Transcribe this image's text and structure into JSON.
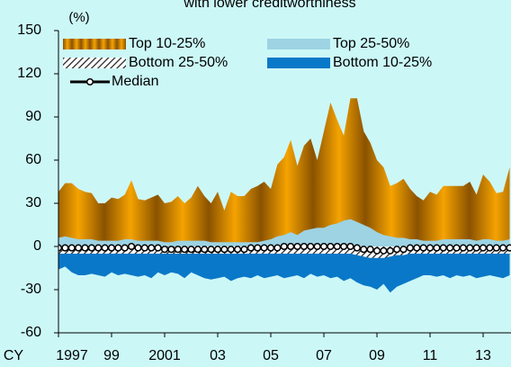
{
  "chart_data": {
    "type": "area",
    "title": "with lower creditworthiness",
    "y_label": "(%)",
    "x_prefix": "CY",
    "x": [
      1997,
      1997.25,
      1997.5,
      1997.75,
      1998,
      1998.25,
      1998.5,
      1998.75,
      1999,
      1999.25,
      1999.5,
      1999.75,
      2000,
      2000.25,
      2000.5,
      2000.75,
      2001,
      2001.25,
      2001.5,
      2001.75,
      2002,
      2002.25,
      2002.5,
      2002.75,
      2003,
      2003.25,
      2003.5,
      2003.75,
      2004,
      2004.25,
      2004.5,
      2004.75,
      2005,
      2005.25,
      2005.5,
      2005.75,
      2006,
      2006.25,
      2006.5,
      2006.75,
      2007,
      2007.25,
      2007.5,
      2007.75,
      2008,
      2008.25,
      2008.5,
      2008.75,
      2009,
      2009.25,
      2009.5,
      2009.75,
      2010,
      2010.25,
      2010.5,
      2010.75,
      2011,
      2011.25,
      2011.5,
      2011.75,
      2012,
      2012.25,
      2012.5,
      2012.75,
      2013,
      2013.25,
      2013.5,
      2013.75,
      2014
    ],
    "series": [
      {
        "name": "Top 10-25%",
        "color": "#f5a300",
        "values": [
          38,
          44,
          44,
          40,
          38,
          37,
          30,
          30,
          34,
          33,
          36,
          46,
          33,
          32,
          34,
          36,
          30,
          31,
          35,
          30,
          34,
          42,
          35,
          30,
          38,
          25,
          38,
          35,
          35,
          40,
          42,
          45,
          40,
          57,
          62,
          74,
          56,
          70,
          75,
          60,
          80,
          100,
          88,
          77,
          103,
          103,
          80,
          72,
          60,
          55,
          42,
          44,
          47,
          40,
          35,
          32,
          38,
          36,
          42,
          42,
          42,
          42,
          45,
          36,
          50,
          45,
          37,
          38,
          55
        ]
      },
      {
        "name": "Top 25-50%",
        "color": "#9dd3e3",
        "values": [
          6,
          7,
          6,
          5,
          5,
          5,
          4,
          4,
          4,
          4,
          5,
          5,
          4,
          4,
          4,
          4,
          3,
          3,
          4,
          4,
          4,
          4,
          4,
          3,
          3,
          3,
          3,
          3,
          3,
          3,
          3,
          4,
          5,
          7,
          8,
          10,
          8,
          11,
          12,
          13,
          13,
          15,
          16,
          18,
          19,
          17,
          15,
          13,
          10,
          8,
          7,
          6,
          6,
          5,
          5,
          4,
          4,
          4,
          5,
          5,
          5,
          5,
          5,
          4,
          5,
          5,
          4,
          4,
          5
        ]
      },
      {
        "name": "Bottom 25-50%",
        "color": "#222222",
        "pattern": "hatch",
        "values": [
          -5,
          -5,
          -5,
          -5,
          -5,
          -5,
          -5,
          -5,
          -5,
          -5,
          -5,
          -5,
          -5,
          -5,
          -5,
          -5,
          -5,
          -5,
          -5,
          -5,
          -5,
          -5,
          -5,
          -5,
          -5,
          -5,
          -5,
          -5,
          -5,
          -5,
          -5,
          -5,
          -5,
          -5,
          -5,
          -5,
          -5,
          -5,
          -5,
          -5,
          -5,
          -5,
          -5,
          -5,
          -5,
          -6,
          -7,
          -8,
          -8,
          -8,
          -7,
          -6,
          -6,
          -5,
          -5,
          -5,
          -5,
          -5,
          -5,
          -5,
          -5,
          -5,
          -5,
          -5,
          -5,
          -5,
          -5,
          -5,
          -5
        ]
      },
      {
        "name": "Bottom 10-25%",
        "color": "#0a78c8",
        "values": [
          -16,
          -14,
          -18,
          -20,
          -20,
          -19,
          -20,
          -21,
          -18,
          -20,
          -19,
          -20,
          -21,
          -20,
          -22,
          -18,
          -20,
          -18,
          -19,
          -22,
          -18,
          -20,
          -22,
          -23,
          -22,
          -21,
          -24,
          -22,
          -21,
          -22,
          -20,
          -22,
          -21,
          -20,
          -22,
          -21,
          -20,
          -22,
          -19,
          -21,
          -20,
          -22,
          -21,
          -24,
          -22,
          -25,
          -27,
          -28,
          -30,
          -26,
          -32,
          -28,
          -26,
          -24,
          -22,
          -20,
          -20,
          -21,
          -20,
          -22,
          -20,
          -21,
          -20,
          -22,
          -21,
          -20,
          -21,
          -22,
          -20
        ]
      },
      {
        "name": "Median",
        "color": "#000000",
        "line": true,
        "values": [
          -1,
          -1,
          -1,
          -1,
          -1,
          -1,
          -1,
          -1,
          -1,
          -1,
          -1,
          0,
          -1,
          -1,
          -1,
          -1,
          -2,
          -2,
          -2,
          -2,
          -2,
          -2,
          -2,
          -2,
          -2,
          -2,
          -2,
          -2,
          -2,
          -1,
          -1,
          -1,
          -1,
          -1,
          0,
          0,
          0,
          0,
          0,
          0,
          0,
          0,
          0,
          0,
          0,
          -1,
          -2,
          -2,
          -3,
          -3,
          -3,
          -2,
          -2,
          -1,
          -1,
          -1,
          -1,
          -1,
          -1,
          -1,
          -1,
          -1,
          -1,
          -1,
          -1,
          -1,
          -1,
          -1,
          -1
        ]
      }
    ],
    "xlim": [
      1997,
      2014.05
    ],
    "xticks": [
      1997,
      {
        "value": 1999,
        "label": "99"
      },
      2001,
      {
        "value": 2003,
        "label": "03"
      },
      {
        "value": 2005,
        "label": "05"
      },
      {
        "value": 2007,
        "label": "07"
      },
      {
        "value": 2009,
        "label": "09"
      },
      {
        "value": 2011,
        "label": "11"
      },
      {
        "value": 2013,
        "label": "13"
      }
    ],
    "ylim": [
      -60,
      150
    ],
    "yticks": [
      -60,
      -30,
      0,
      30,
      60,
      90,
      120,
      150
    ],
    "legend": "top-left",
    "background": "#ccf7f7"
  }
}
